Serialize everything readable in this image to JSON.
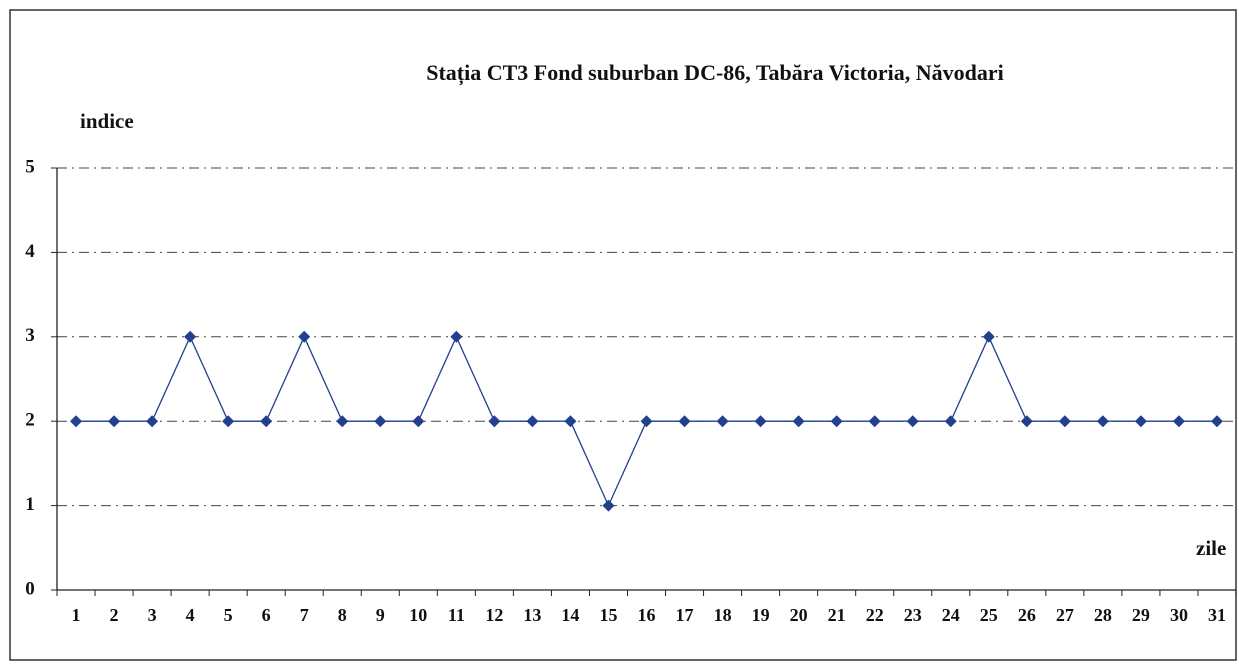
{
  "chart_data": {
    "type": "line",
    "title": "Stația CT3 Fond suburban  DC-86, Tabăra Victoria, Năvodari",
    "y_label": "indice",
    "x_label": "zile",
    "categories": [
      "1",
      "2",
      "3",
      "4",
      "5",
      "6",
      "7",
      "8",
      "9",
      "10",
      "11",
      "12",
      "13",
      "14",
      "15",
      "16",
      "17",
      "18",
      "19",
      "20",
      "21",
      "22",
      "23",
      "24",
      "25",
      "26",
      "27",
      "28",
      "29",
      "30",
      "31"
    ],
    "series": [
      {
        "name": "indice",
        "color": "#23408e",
        "values": [
          2,
          2,
          2,
          3,
          2,
          2,
          3,
          2,
          2,
          2,
          3,
          2,
          2,
          2,
          1,
          2,
          2,
          2,
          2,
          2,
          2,
          2,
          2,
          2,
          3,
          2,
          2,
          2,
          2,
          2,
          2
        ]
      }
    ],
    "ylim": [
      0,
      5
    ],
    "yticks": [
      0,
      1,
      2,
      3,
      4,
      5
    ],
    "grid": true
  }
}
